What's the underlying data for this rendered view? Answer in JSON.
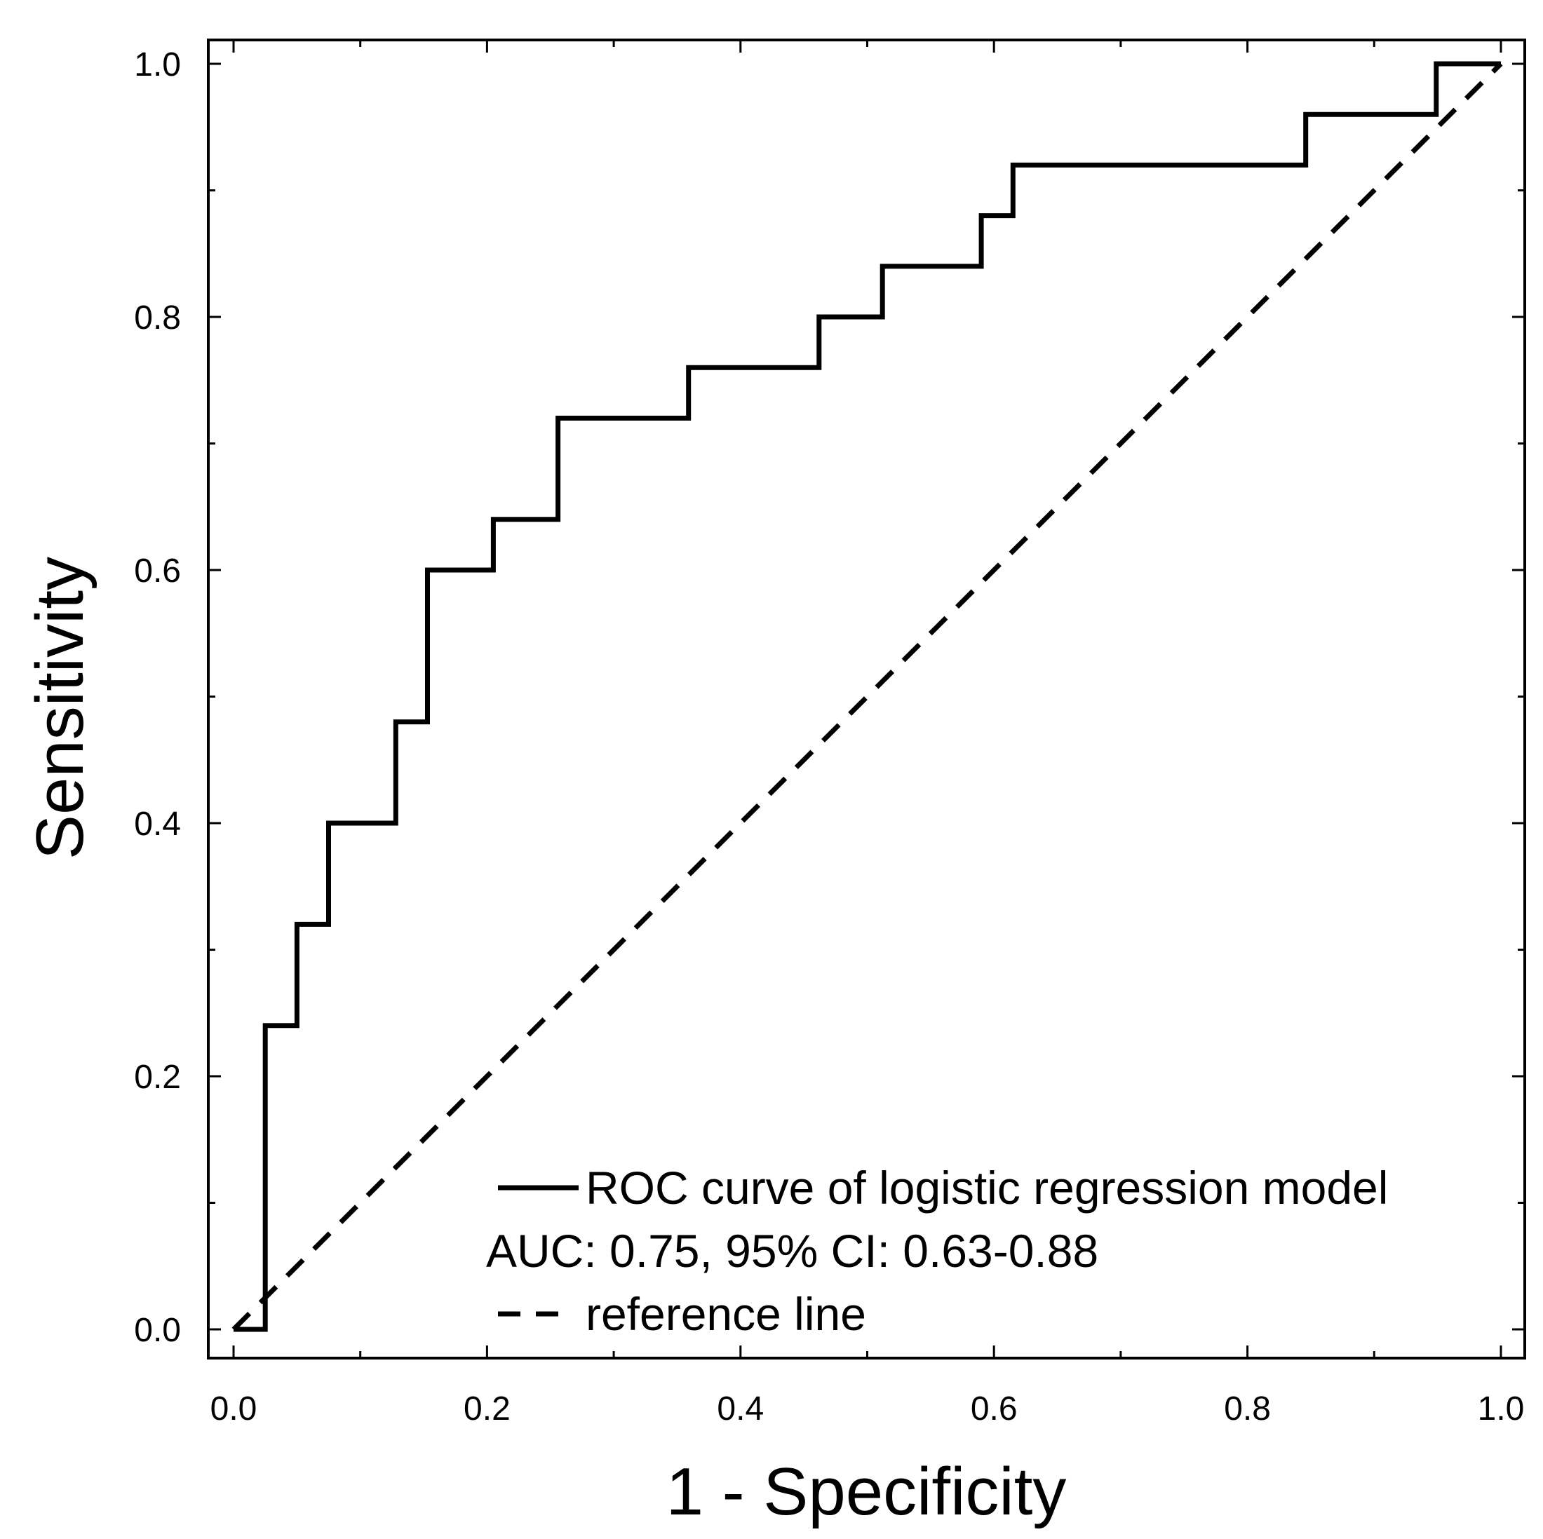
{
  "chart_data": {
    "type": "line",
    "xlabel": "1 - Specificity",
    "ylabel": "Sensitivity",
    "xlim": [
      0,
      1
    ],
    "ylim": [
      0,
      1
    ],
    "xticks": [
      "0.0",
      "0.2",
      "0.4",
      "0.6",
      "0.8",
      "1.0"
    ],
    "yticks": [
      "0.0",
      "0.2",
      "0.4",
      "0.6",
      "0.8",
      "1.0"
    ],
    "grid": false,
    "legend_position": "bottom-right",
    "series": [
      {
        "name": "ROC curve of logistic regression model",
        "style": "solid-step",
        "x": [
          0,
          0.025,
          0.025,
          0.05,
          0.05,
          0.075,
          0.075,
          0.128,
          0.128,
          0.153,
          0.153,
          0.205,
          0.205,
          0.256,
          0.256,
          0.359,
          0.359,
          0.462,
          0.462,
          0.512,
          0.512,
          0.59,
          0.59,
          0.615,
          0.615,
          0.846,
          0.846,
          0.949,
          0.949,
          1.0
        ],
        "y": [
          0,
          0,
          0.24,
          0.24,
          0.32,
          0.32,
          0.4,
          0.4,
          0.48,
          0.48,
          0.6,
          0.6,
          0.64,
          0.64,
          0.72,
          0.72,
          0.76,
          0.76,
          0.8,
          0.8,
          0.84,
          0.84,
          0.88,
          0.88,
          0.92,
          0.92,
          0.96,
          0.96,
          1.0,
          1.0
        ]
      },
      {
        "name": "reference line",
        "style": "dashed",
        "x": [
          0,
          1
        ],
        "y": [
          0,
          1
        ]
      }
    ],
    "annotation": "AUC: 0.75, 95% CI: 0.63-0.88"
  }
}
